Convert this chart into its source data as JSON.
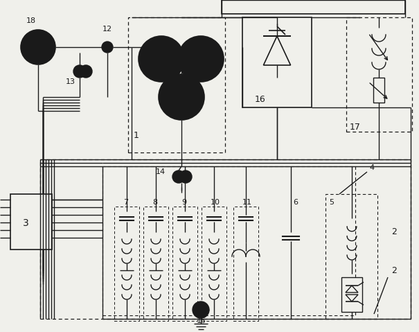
{
  "bg_color": "#f0f0eb",
  "line_color": "#1a1a1a",
  "dashed_color": "#1a1a1a",
  "fig_width": 6.05,
  "fig_height": 4.79,
  "dpi": 100
}
